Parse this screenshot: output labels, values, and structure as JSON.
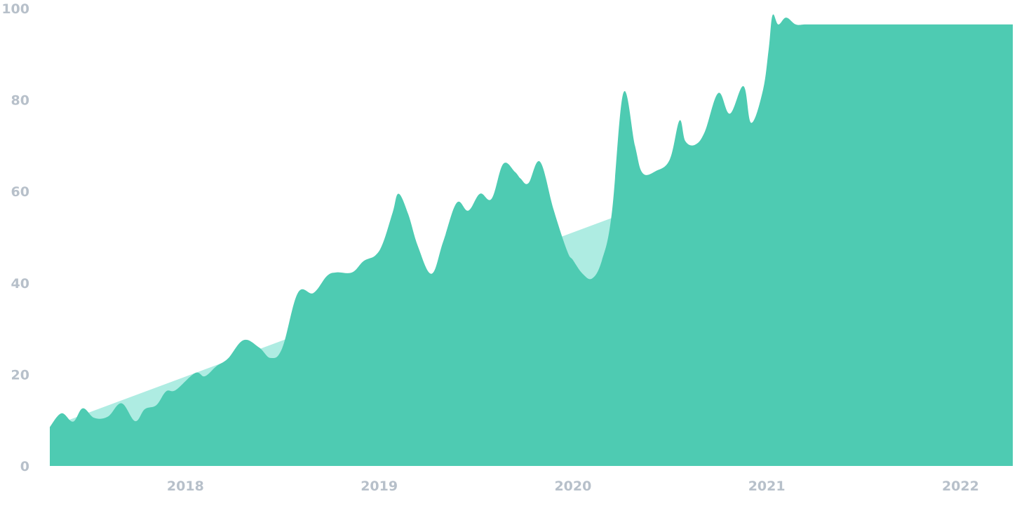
{
  "chart_data": {
    "type": "area",
    "title": "",
    "xlabel": "",
    "ylabel": "",
    "xlim": [
      2017.3,
      2022.27
    ],
    "ylim": [
      0,
      100
    ],
    "yticks": [
      0,
      20,
      40,
      60,
      80,
      100
    ],
    "ytick_labels": [
      "0",
      "20",
      "40",
      "60",
      "80",
      "100"
    ],
    "xticks": [
      2018,
      2019,
      2020,
      2021,
      2022
    ],
    "xtick_labels": [
      "2018",
      "2019",
      "2020",
      "2021",
      "2022"
    ],
    "grid": false,
    "legend": "none",
    "colors": {
      "series": "#4ecbb2",
      "trend": "#aeece2",
      "tick_text": "#b7c0ca"
    },
    "series": [
      {
        "role": "actual",
        "x": [
          2017.3,
          2017.36,
          2017.42,
          2017.47,
          2017.53,
          2017.6,
          2017.67,
          2017.74,
          2017.79,
          2017.85,
          2017.9,
          2017.95,
          2018.05,
          2018.1,
          2018.16,
          2018.22,
          2018.3,
          2018.38,
          2018.44,
          2018.5,
          2018.58,
          2018.66,
          2018.73,
          2018.78,
          2018.86,
          2018.92,
          2018.98,
          2019.02,
          2019.07,
          2019.1,
          2019.15,
          2019.2,
          2019.27,
          2019.33,
          2019.4,
          2019.46,
          2019.52,
          2019.58,
          2019.64,
          2019.7,
          2019.73,
          2019.77,
          2019.83,
          2019.9,
          2019.97,
          2020.0,
          2020.05,
          2020.1,
          2020.15,
          2020.2,
          2020.26,
          2020.32,
          2020.36,
          2020.43,
          2020.5,
          2020.55,
          2020.58,
          2020.63,
          2020.68,
          2020.75,
          2020.81,
          2020.88,
          2020.92,
          2020.98,
          2021.01,
          2021.03,
          2021.06,
          2021.1,
          2021.15,
          2021.2,
          2021.27,
          2021.32,
          2021.37,
          2021.42,
          2021.47,
          2021.52,
          2021.56,
          2021.61,
          2021.65,
          2021.7,
          2021.76,
          2021.8,
          2021.86,
          2021.91,
          2021.96,
          2022.01,
          2022.06,
          2022.1,
          2022.14,
          2022.18,
          2022.22,
          2022.27
        ],
        "values": [
          8.5,
          11.5,
          9.7,
          12.6,
          10.5,
          10.8,
          13.7,
          9.8,
          12.4,
          13.3,
          16.3,
          16.6,
          20.3,
          19.6,
          21.8,
          23.5,
          27.5,
          25.9,
          23.6,
          25.8,
          37.8,
          37.8,
          41.5,
          42.3,
          42.3,
          44.8,
          46.0,
          48.8,
          55.5,
          59.5,
          55.0,
          48.0,
          42.0,
          49.0,
          57.5,
          55.8,
          59.5,
          58.4,
          66.0,
          64.3,
          62.8,
          61.8,
          66.5,
          56.0,
          47.0,
          45.0,
          42.0,
          41.0,
          45.0,
          55.0,
          81.5,
          70.0,
          64.0,
          64.5,
          67.0,
          75.5,
          71.0,
          70.2,
          73.0,
          81.5,
          77.0,
          83.0,
          75.0,
          82.0,
          91.0,
          98.5,
          96.5,
          98.0,
          96.5,
          96.5,
          96.5,
          96.5,
          96.5,
          96.5,
          96.5,
          96.5,
          96.5,
          96.5,
          96.5,
          96.5,
          96.5,
          96.5,
          96.5,
          96.5,
          96.5,
          96.5,
          96.5,
          96.5,
          96.5,
          96.5,
          96.5,
          96.5
        ]
      },
      {
        "role": "trend",
        "x": [
          2017.3,
          2022.27
        ],
        "values": [
          8.5,
          86.8
        ]
      }
    ]
  }
}
